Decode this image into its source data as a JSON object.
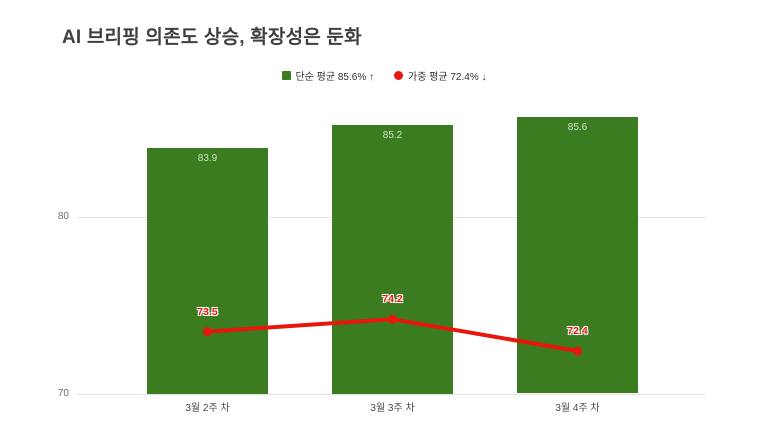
{
  "title": "AI 브리핑 의존도 상승, 확장성은 둔화",
  "legend": [
    {
      "marker": "square",
      "color": "#3a7c1f",
      "label": "단순 평균 85.6% ↑"
    },
    {
      "marker": "circle",
      "color": "#e8160c",
      "label": "가중 평균 72.4% ↓"
    }
  ],
  "colors": {
    "bar_green": "#3a7c1f",
    "line_red": "#e8160c",
    "title_text": "#3f3f3f",
    "grid": "#e3e3e3"
  },
  "chart_data": {
    "type": "bar",
    "title": "AI 브리핑 의존도 상승, 확장성은 둔화",
    "categories": [
      "3월 2주 차",
      "3월 3주 차",
      "3월 4주 차"
    ],
    "series": [
      {
        "name": "단순 평균",
        "type": "bar",
        "color": "#3a7c1f",
        "values": [
          83.9,
          85.2,
          85.6
        ]
      },
      {
        "name": "가중 평균",
        "type": "line",
        "color": "#e8160c",
        "values": [
          73.5,
          74.2,
          72.4
        ]
      }
    ],
    "xlabel": "",
    "ylabel": "",
    "ylim": [
      70,
      87.8
    ],
    "yticks": [
      70,
      80
    ],
    "grid": true,
    "legend_position": "top-center"
  }
}
